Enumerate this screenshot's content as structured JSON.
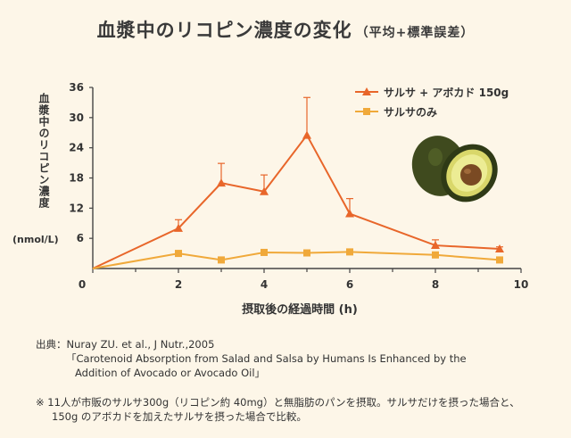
{
  "title": "血漿中のリコピン濃度の変化",
  "title_sub": "（平均+標準誤差）",
  "chart_data": {
    "type": "line",
    "xlabel": "摂取後の経過時間 (h)",
    "ylabel": "血漿中のリコピン濃度",
    "yunit": "(nmol/L)",
    "xlim": [
      0,
      10
    ],
    "ylim": [
      0,
      36
    ],
    "xticks": [
      0,
      2,
      4,
      6,
      8,
      10
    ],
    "yticks": [
      6,
      12,
      18,
      24,
      30,
      36
    ],
    "legend_position": "top-right",
    "series": [
      {
        "name": "サルサ + アボカド 150g",
        "color": "#e8662a",
        "marker": "triangle",
        "x": [
          0,
          2,
          3,
          4,
          5,
          6,
          8,
          9.5
        ],
        "y": [
          0,
          8,
          17,
          15.3,
          26.5,
          10.9,
          4.6,
          3.9
        ],
        "error": [
          0,
          1.7,
          3.9,
          3.3,
          7.5,
          3,
          1.1,
          0.4
        ]
      },
      {
        "name": "サルサのみ",
        "color": "#f0a93a",
        "marker": "square",
        "x": [
          0,
          2,
          3,
          4,
          5,
          6,
          8,
          9.5
        ],
        "y": [
          0,
          3,
          1.7,
          3.2,
          3.1,
          3.3,
          2.7,
          1.7
        ],
        "error": [
          0,
          0,
          0,
          0,
          0,
          0,
          0,
          0
        ]
      }
    ]
  },
  "source": {
    "line1": "出典：Nuray ZU. et al., J Nutr.,2005",
    "line2": "「Carotenoid Absorption from Salad and Salsa by Humans Is Enhanced by the",
    "line3": "Addition of Avocado or Avocado Oil」"
  },
  "note": {
    "line1": "※ 11人が市販のサルサ300g（リコピン約 40mg）と無脂肪のパンを摂取。サルサだけを摂った場合と、",
    "line2": "150g のアボカドを加えたサルサを摂った場合で比較。"
  },
  "colors": {
    "background": "#fdf6e8",
    "axis": "#444444",
    "avocado_skin": "#3f4a1e",
    "avocado_flesh": "#d9d76a",
    "avocado_seed": "#7a4a23"
  }
}
